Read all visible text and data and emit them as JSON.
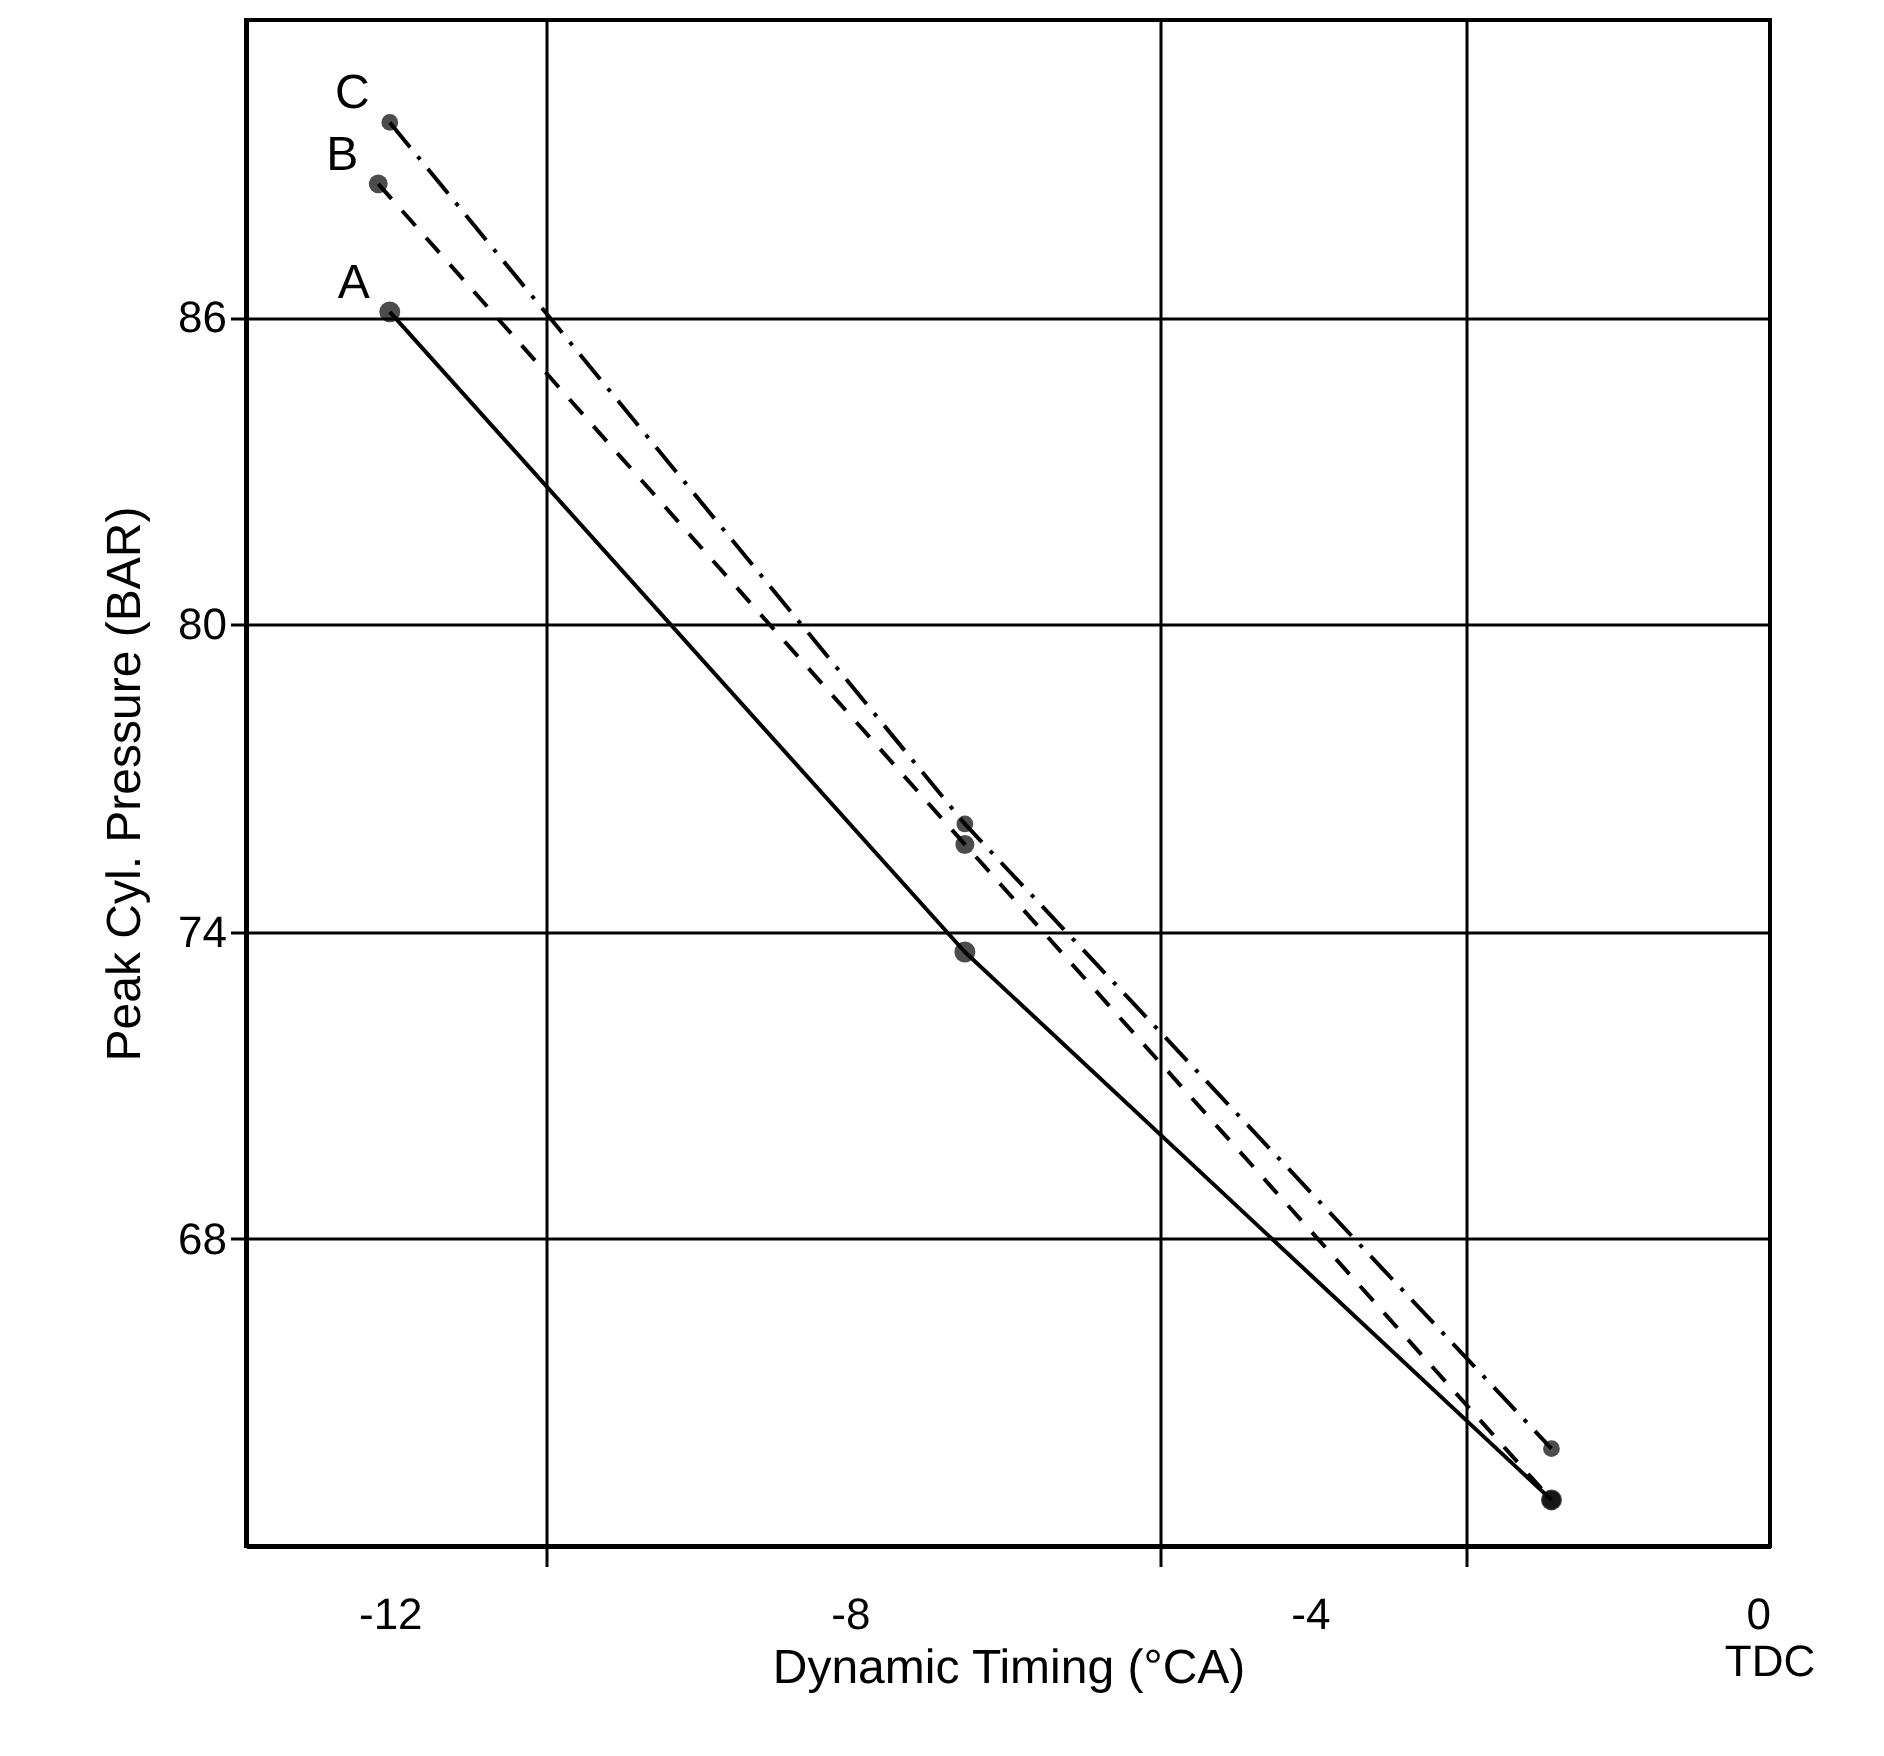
{
  "chart_data": {
    "type": "line",
    "xlabel": "Dynamic Timing (°CA)",
    "ylabel": "Peak Cyl. Pressure (BAR)",
    "xlim": [
      -13.25,
      0
    ],
    "ylim": [
      62,
      91.8
    ],
    "xticks": [
      -12,
      {
        "value": -10.65,
        "label": null
      },
      -8,
      {
        "value": -5.3,
        "label": null
      },
      -4,
      {
        "value": -2.65,
        "label": null
      },
      0
    ],
    "yticks": [
      68,
      74,
      80,
      86
    ],
    "grid": true,
    "marker": "circle",
    "legend": false,
    "annotations": [
      "TDC"
    ],
    "series": [
      {
        "name": "A",
        "color": "#000000",
        "line_style": "solid",
        "x": [
          -12,
          -7,
          -1.9
        ],
        "values": [
          86.1,
          73.6,
          62.9
        ]
      },
      {
        "name": "B",
        "color": "#000000",
        "line_style": "dashed",
        "x": [
          -12.1,
          -7,
          -1.9
        ],
        "values": [
          88.6,
          75.7,
          62.9
        ]
      },
      {
        "name": "C",
        "color": "#000000",
        "line_style": "dashdot",
        "x": [
          -12,
          -7,
          -1.9
        ],
        "values": [
          89.8,
          76.1,
          63.9
        ]
      }
    ]
  }
}
